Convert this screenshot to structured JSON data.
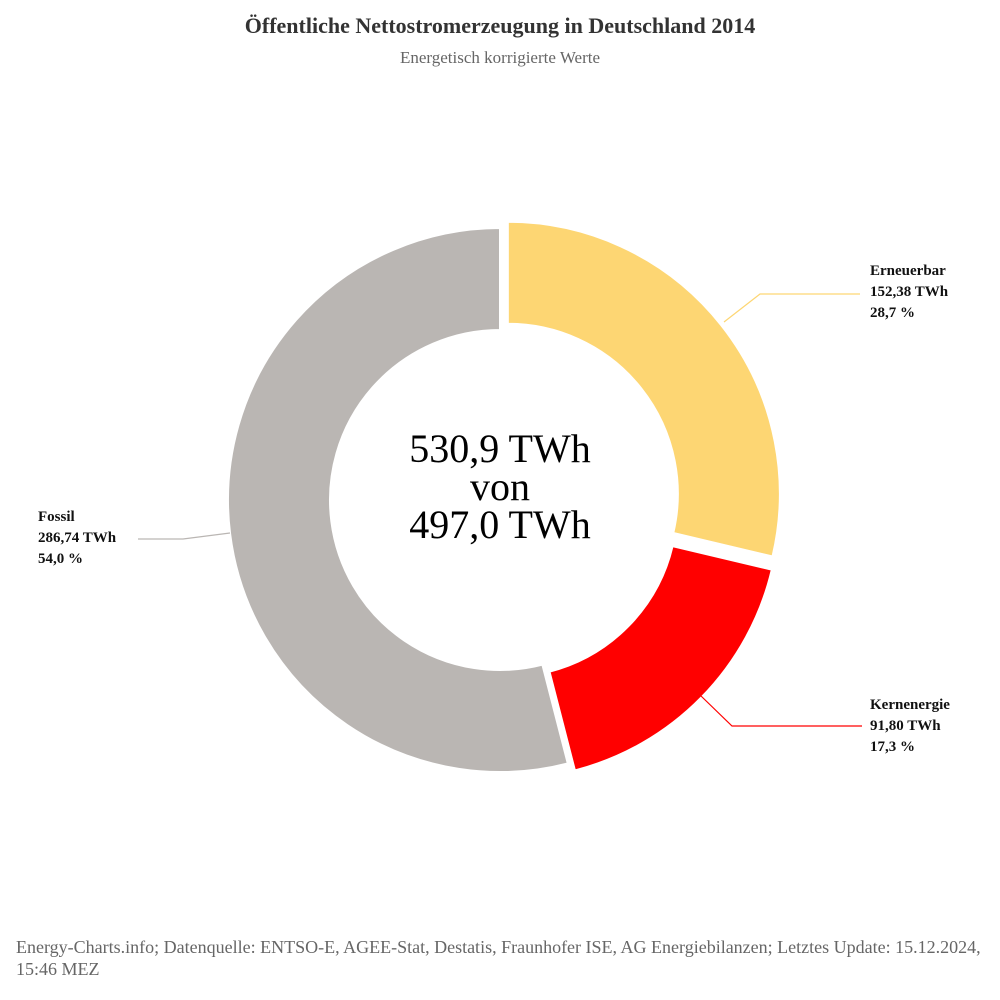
{
  "chart_data": {
    "type": "pie",
    "donut": true,
    "title": "Öffentliche Nettostromerzeugung in Deutschland 2014",
    "subtitle": "Energetisch korrigierte Werte",
    "categories": [
      "Erneuerbar",
      "Kernenergie",
      "Fossil"
    ],
    "values": [
      152.38,
      91.8,
      286.74
    ],
    "value_labels": [
      "152,38 TWh",
      "91,80 TWh",
      "286,74 TWh"
    ],
    "shares": [
      28.7,
      17.3,
      54.0
    ],
    "share_labels": [
      "28,7 %",
      "17,3 %",
      "54,0 %"
    ],
    "colors": [
      "#fdd673",
      "#ff0000",
      "#bab6b3"
    ],
    "center_text": [
      "530,9 TWh",
      "von",
      "497,0 TWh"
    ],
    "source": "Energy-Charts.info; Datenquelle: ENTSO-E, AGEE-Stat, Destatis, Fraunhofer ISE, AG Energiebilanzen; Letztes Update: 15.12.2024, 15:46 MEZ"
  }
}
